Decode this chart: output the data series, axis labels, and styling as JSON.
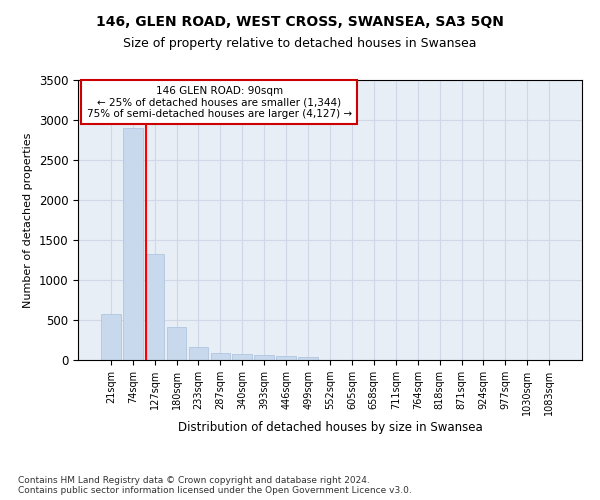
{
  "title": "146, GLEN ROAD, WEST CROSS, SWANSEA, SA3 5QN",
  "subtitle": "Size of property relative to detached houses in Swansea",
  "xlabel": "Distribution of detached houses by size in Swansea",
  "ylabel": "Number of detached properties",
  "footnote": "Contains HM Land Registry data © Crown copyright and database right 2024.\nContains public sector information licensed under the Open Government Licence v3.0.",
  "bar_labels": [
    "21sqm",
    "74sqm",
    "127sqm",
    "180sqm",
    "233sqm",
    "287sqm",
    "340sqm",
    "393sqm",
    "446sqm",
    "499sqm",
    "552sqm",
    "605sqm",
    "658sqm",
    "711sqm",
    "764sqm",
    "818sqm",
    "871sqm",
    "924sqm",
    "977sqm",
    "1030sqm",
    "1083sqm"
  ],
  "bar_values": [
    580,
    2900,
    1330,
    410,
    160,
    90,
    70,
    60,
    50,
    40,
    0,
    0,
    0,
    0,
    0,
    0,
    0,
    0,
    0,
    0,
    0
  ],
  "bar_color": "#c8d9ed",
  "bar_edge_color": "#a8c0dc",
  "ylim": [
    0,
    3500
  ],
  "yticks": [
    0,
    500,
    1000,
    1500,
    2000,
    2500,
    3000,
    3500
  ],
  "red_line_x": 1.62,
  "annotation_text": "146 GLEN ROAD: 90sqm\n← 25% of detached houses are smaller (1,344)\n75% of semi-detached houses are larger (4,127) →",
  "annotation_box_color": "#ffffff",
  "annotation_box_edge": "#cc0000",
  "grid_color": "#d0d8e8",
  "bg_color": "#e8eef5",
  "title_fontsize": 10,
  "subtitle_fontsize": 9
}
